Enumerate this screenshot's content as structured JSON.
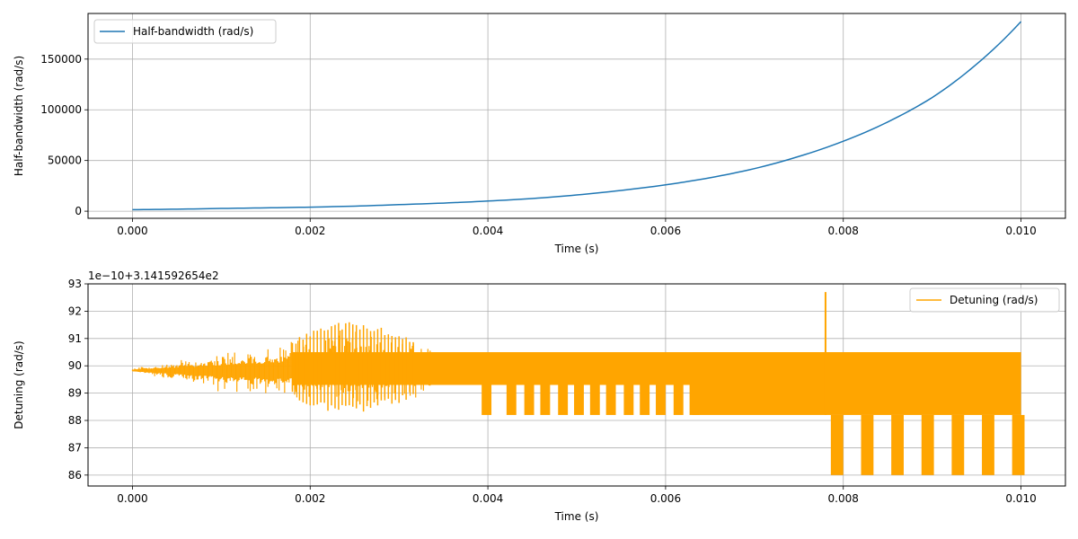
{
  "chart_data": [
    {
      "type": "line",
      "xlabel": "Time (s)",
      "ylabel": "Half-bandwidth (rad/s)",
      "xlim": [
        -0.0005,
        0.0105
      ],
      "ylim": [
        -7000,
        195000
      ],
      "xticks": [
        "0.000",
        "0.002",
        "0.004",
        "0.006",
        "0.008",
        "0.010"
      ],
      "xtick_values": [
        0,
        0.002,
        0.004,
        0.006,
        0.008,
        0.01
      ],
      "yticks": [
        "0",
        "50000",
        "100000",
        "150000"
      ],
      "ytick_values": [
        0,
        50000,
        100000,
        150000
      ],
      "grid": true,
      "legend_position": "upper-left",
      "series": [
        {
          "name": "Half-bandwidth (rad/s)",
          "color": "#1f77b4",
          "x": [
            0,
            0.0005,
            0.001,
            0.0015,
            0.002,
            0.0025,
            0.003,
            0.0035,
            0.004,
            0.0045,
            0.005,
            0.0055,
            0.006,
            0.0065,
            0.007,
            0.0075,
            0.008,
            0.0085,
            0.009,
            0.0095,
            0.01
          ],
          "y": [
            1500,
            2000,
            2700,
            3300,
            4000,
            5000,
            6500,
            8000,
            10000,
            12500,
            16000,
            20500,
            26000,
            33000,
            42000,
            54000,
            69000,
            88000,
            112000,
            145000,
            187000
          ]
        }
      ]
    },
    {
      "type": "line",
      "xlabel": "Time (s)",
      "ylabel": "Detuning (rad/s)",
      "offset_text": "1e−10+3.141592654e2",
      "xlim": [
        -0.0005,
        0.0105
      ],
      "ylim": [
        85.6,
        93.0
      ],
      "xticks": [
        "0.000",
        "0.002",
        "0.004",
        "0.006",
        "0.008",
        "0.010"
      ],
      "xtick_values": [
        0,
        0.002,
        0.004,
        0.006,
        0.008,
        0.01
      ],
      "yticks": [
        "86",
        "87",
        "88",
        "89",
        "90",
        "91",
        "92",
        "93"
      ],
      "ytick_values": [
        86,
        87,
        88,
        89,
        90,
        91,
        92,
        93
      ],
      "grid": true,
      "legend_position": "upper-right",
      "series": [
        {
          "name": "Detuning (rad/s)",
          "color": "#ffa500",
          "x": [
            0,
            0.001,
            0.0018,
            0.0022,
            0.0026,
            0.0032,
            0.0034,
            0.004,
            0.005,
            0.006,
            0.0063,
            0.007,
            0.0078,
            0.008,
            0.009,
            0.01
          ],
          "y_upper": [
            89.9,
            90.5,
            91.0,
            91.6,
            91.6,
            91.0,
            90.5,
            90.5,
            90.5,
            90.5,
            90.5,
            90.5,
            92.7,
            90.5,
            90.5,
            90.5
          ],
          "y_lower": [
            89.8,
            89.0,
            88.8,
            88.3,
            88.3,
            88.8,
            89.3,
            88.2,
            88.2,
            88.2,
            88.2,
            88.2,
            86.0,
            86.0,
            86.0,
            86.0
          ],
          "mid_dip_starts": [
            0.00393,
            0.00421,
            0.00441,
            0.00459,
            0.00479,
            0.00497,
            0.00515,
            0.00533,
            0.00553,
            0.00571,
            0.00589,
            0.00609,
            0.00627
          ],
          "deep_dip_starts": [
            0.00786,
            0.0082,
            0.00854,
            0.00888,
            0.00922,
            0.00956,
            0.0099
          ]
        }
      ]
    }
  ]
}
